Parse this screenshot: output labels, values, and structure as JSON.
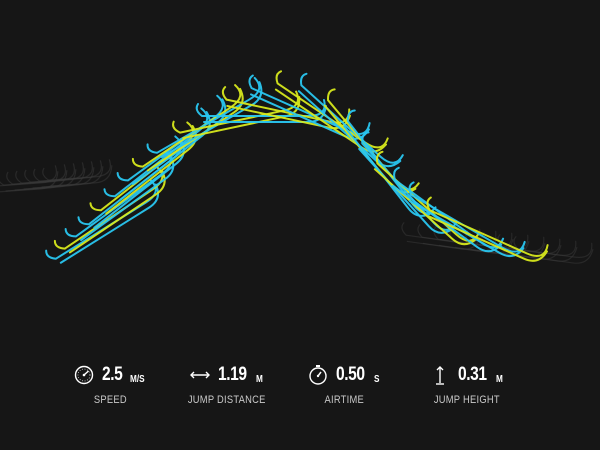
{
  "colors": {
    "background": "#161616",
    "blue": "#29c6f0",
    "yellow": "#d7e81c",
    "shadow": "#3a3a3a"
  },
  "stats": [
    {
      "icon": "speedometer-icon",
      "value": "2.5",
      "unit": "M/S",
      "label": "SPEED"
    },
    {
      "icon": "horizontal-arrow-icon",
      "value": "1.19",
      "unit": "M",
      "label": "JUMP DISTANCE"
    },
    {
      "icon": "stopwatch-icon",
      "value": "0.50",
      "unit": "S",
      "label": "AIRTIME"
    },
    {
      "icon": "vertical-arrow-icon",
      "value": "0.31",
      "unit": "M",
      "label": "JUMP HEIGHT"
    }
  ]
}
